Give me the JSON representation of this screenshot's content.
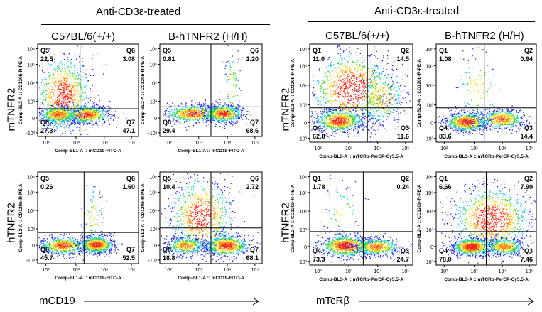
{
  "left": {
    "header": "Anti-CD3ε-treated",
    "columns": [
      "C57BL/6(+/+)",
      "B-hTNFR2  (H/H)"
    ],
    "rows": [
      "mTNFR2",
      "hTNFR2"
    ],
    "bottom_label": "mCD19",
    "x_axis": "Comp-BL1-A :: mCD19-FITC-A",
    "y_axis": "Comp-BL2-A :: CD120b-R-PE-A",
    "quadrant_names": [
      "Q5",
      "Q6",
      "Q8",
      "Q7"
    ],
    "plots": [
      {
        "values": [
          "22.5",
          "3.08",
          "27.3",
          "47.1"
        ]
      },
      {
        "values": [
          "0.81",
          "1.20",
          "29.4",
          "68.6"
        ]
      },
      {
        "values": [
          "0.26",
          "1.60",
          "45.7",
          "52.5"
        ]
      },
      {
        "values": [
          "10.4",
          "2.72",
          "18.8",
          "68.1"
        ]
      }
    ]
  },
  "right": {
    "header": "Anti-CD3ε-treated",
    "columns": [
      "C57BL/6(+/+)",
      "B-hTNFR2  (H/H)"
    ],
    "rows": [
      "mTNFR2",
      "hTNFR2"
    ],
    "bottom_label": "mTcRβ",
    "x_axis": "Comp-BL3-A :: mTCRb-PerCP-Cy5.5-A",
    "y_axis": "Comp-BL2-A :: CD120b-R-PE-A",
    "quadrant_names": [
      "Q1",
      "Q2",
      "Q4",
      "Q3"
    ],
    "plots": [
      {
        "values": [
          "11.0",
          "14.5",
          "62.8",
          "11.6"
        ]
      },
      {
        "values": [
          "1.08",
          "0.94",
          "83.6",
          "14.4"
        ]
      },
      {
        "values": [
          "1.78",
          "0.24",
          "73.3",
          "24.7"
        ]
      },
      {
        "values": [
          "6.66",
          "7.90",
          "78.0",
          "7.46"
        ]
      }
    ]
  },
  "left_x_ticks": [
    "10²",
    "10³",
    "10⁴",
    "10⁵"
  ],
  "right_x_ticks": [
    "10²",
    "10³",
    "10⁴",
    "10⁵"
  ],
  "y_ticks": [
    "10⁶",
    "10⁵",
    "10⁴",
    "10³",
    "0",
    "-10³"
  ],
  "colors": {
    "dot_blue": "#1a2bd8",
    "dot_cyan": "#19c8e0",
    "dot_green": "#3fd23a",
    "dot_yellow": "#f0e020",
    "dot_orange": "#ff8a00",
    "dot_red": "#ff2a10"
  }
}
